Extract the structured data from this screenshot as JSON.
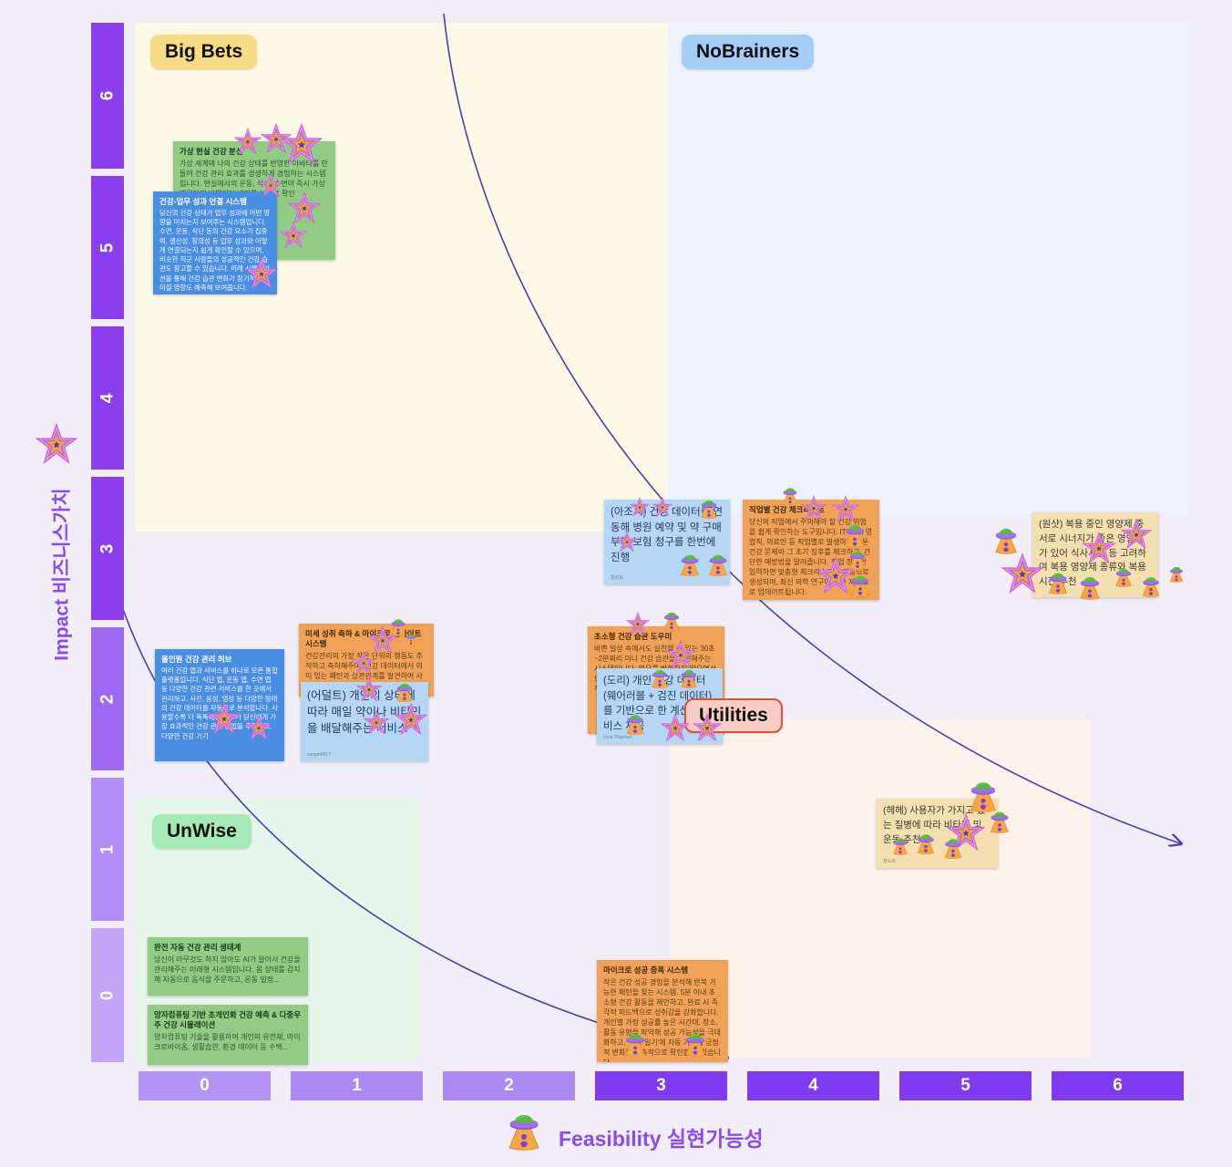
{
  "palette": {
    "axis_dark": "#8b3ef0",
    "axis_mid": "#9d68f2",
    "axis_light": "#b28df5",
    "axis_lighter": "#c3a6f7",
    "x_light": "#aa8af2",
    "curve": "#4c3fb5",
    "accent_purple": "#8a4bf0",
    "bigbets_bg": "#fcf9e6",
    "nobrainers_bg": "#eef2fc",
    "unwise_bg": "#e6f6ea",
    "utilities_bg": "#fdf3ea"
  },
  "axes": {
    "y": {
      "label": "Impact 비즈니스가치",
      "ticks": [
        "6",
        "5",
        "4",
        "3",
        "2",
        "1",
        "0"
      ]
    },
    "x": {
      "label": "Feasibility 실현가능성",
      "ticks": [
        "0",
        "1",
        "2",
        "3",
        "4",
        "5",
        "6"
      ]
    }
  },
  "quadrants": {
    "big_bets": "Big Bets",
    "nobrainers": "NoBrainers",
    "unwise": "UnWise",
    "utilities": "Utilities"
  },
  "notes": {
    "vr_avatar": {
      "title": "가상 현실 건강 분신",
      "body": "가상 세계에 나의 건강 상태를 반영한 아바타를 만들어 건강 관리 효과를 생생하게 경험하는 시스템입니다. 현실에서의 운동, 식사, 수면이 즉시 가상 캐릭터에 반영되어 변화를 눈으로 확인"
    },
    "work_link": {
      "title": "건강-업무 성과 연결 시스템",
      "body": "당신의 건강 상태가 업무 성과에 어떤 영향을 미치는지 보여주는 시스템입니다. 수면, 운동, 식단 등의 건강 요소가 집중력, 생산성, 창의성 등 업무 성과와 어떻게 연결되는지 쉽게 확인할 수 있으며, 비슷한 직군 사람들의 성공적인 건강 습관도 참고할 수 있습니다. 미래 시뮬레이션을 통해 건강 습관 변화가 장기적으로 미칠 영향도 예측해 보여줍니다."
    },
    "allinone": {
      "title": "올인원 건강 관리 허브",
      "body": "여러 건강 앱과 서비스를 하나로 모은 통합 플랫폼입니다. 식단 앱, 운동 앱, 수면 앱 등 다양한 건강 관련 서비스를 한 곳에서 관리하고, 사진, 음성, 영상 등 다양한 형태의 건강 데이터를 자동으로 분석합니다. 사용할수록 더 똑똑해지는 AI가 당신에게 가장 효과적인 건강 관리 방법을 추천하고, 다양한 건강 기기"
    },
    "ajossi": {
      "text": "(아조씨) 건강 데이터를 연동해 병원 예약 및 약 구매부터 보험 청구를 한번에 진행",
      "author": "김성희"
    },
    "jobcheck": {
      "title": "직업별 건강 체크리스트",
      "body": "당신의 직업에서 주의해야 할 건강 위험을 쉽게 확인하는 도구입니다. IT 직군, 영업직, 의료인 등 직업별로 발생하기 쉬운 건강 문제와 그 초기 징후를 체크하고, 간단한 예방법을 알려줍니다. 직업 정보만 입력하면 맞춤형 체크리스트가 자동으로 생성되며, 최신 의학 연구에 따라 지속으로 업데이트됩니다."
    },
    "oneshot": {
      "text": "(원샷) 복용 중인 영양제 중 서로 시너지가 좋은 영양제가 있어 식사시간 등 고려하여 복용 영양제 종류와 복용 시간 추천"
    },
    "micro_insight": {
      "title": "미세 성취 축하 & 마이크로 인사이트 시스템",
      "body": "건강관리의 가장 작은 단위의 행동도 추적하고 축하해주며, 건강 데이터에서 의미 있는 패턴과 상관관계를 발견하여 사용자에게 맞춤형 인사이트를 제공하는 시스템입니다. 예를 들어 '오늘 계단 3층 오르기' 같은 작은 목표를 달성하"
    },
    "adult": {
      "text": "(어덜트) 개인의 상태에 따라 매일 약이나 비타민을 배달해주는 서비스",
      "author": "sungin0617"
    },
    "micro_habit": {
      "title": "초소형 건강 습관 도우미",
      "body": "바쁜 일상 속에서도 실천할 수 있는 30초~2분짜리 미니 건강 습관을 추천해주는 시스템입니다. 업무를 방해하지 않으면서도 필요한 건강 행동을 적시에 제안하고, 작은 실천을 축하해주는 시스템"
    },
    "dori": {
      "text": "(도리) 개인 건강 데이터 (웨어러블 + 검진 데이터)를 기반으로 한 계산기 서비스 제공",
      "author": "Uma Thurman"
    },
    "hehe": {
      "text": "(헤헤) 사용자가 가지고 있는 질병에 따라 비타민 및 운동 추천",
      "author": "정도희"
    },
    "auto_eco": {
      "title": "완전 자동 건강 관리 생태계",
      "body": "당신이 아무것도 하지 않아도 AI가 알아서 건강을 관리해주는 미래형 시스템입니다. 몸 상태를 감지해 자동으로 음식을 주문하고, 운동 일정..."
    },
    "quantum": {
      "title": "양자컴퓨팅 기반 초개인화 건강 예측 & 다중우주 건강 시뮬레이션",
      "body": "양자컴퓨팅 기술을 활용하여 개인의 유전체, 마이크로바이옴, 생활습관, 환경 데이터 등 수백..."
    },
    "micro_success": {
      "title": "마이크로 성공 증폭 시스템",
      "body": "작은 건강 성공 경험을 분석해 반복 가능한 패턴을 찾는 시스템. 5분 이내 초소형 건강 활동을 제안하고, 완료 시 즉각적 피드백으로 성취감을 강화합니다. 개인별 가장 성공률 높은 시간대, 장소, 활동 유형을 파악해 성공 가능성을 극대화하고, '성공 일기'에 자동 기록해 긍정적 변화를 지속적으로 확인할 수 있습니다."
    }
  }
}
